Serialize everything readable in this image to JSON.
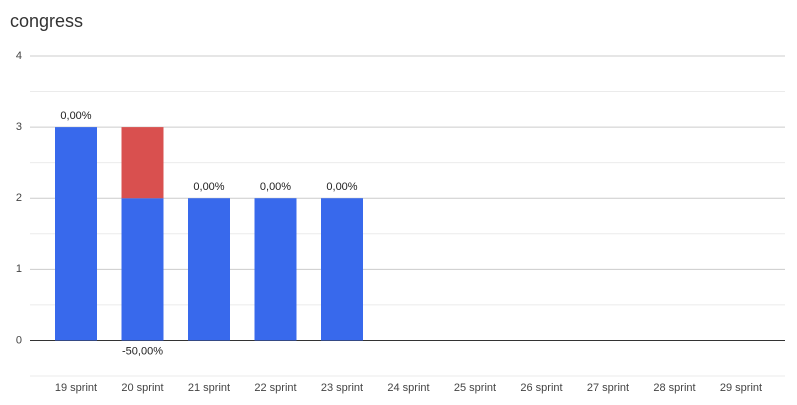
{
  "chart_data": {
    "type": "stacked-bar",
    "title": "congress",
    "categories": [
      "19 sprint",
      "20 sprint",
      "21 sprint",
      "22 sprint",
      "23 sprint",
      "24 sprint",
      "25 sprint",
      "26 sprint",
      "27 sprint",
      "28 sprint",
      "29 sprint"
    ],
    "series": [
      {
        "color": "#3869ec",
        "values": [
          3,
          2,
          2,
          2,
          2,
          null,
          null,
          null,
          null,
          null,
          null
        ]
      },
      {
        "color": "#d9504f",
        "values": [
          null,
          1,
          null,
          null,
          null,
          null,
          null,
          null,
          null,
          null,
          null
        ]
      }
    ],
    "annotations": [
      "0,00%",
      "-50,00%",
      "0,00%",
      "0,00%",
      "0,00%",
      null,
      null,
      null,
      null,
      null,
      null
    ],
    "ylim": [
      -0.5,
      4
    ],
    "yticks": [
      0,
      1,
      2,
      3,
      4
    ],
    "minor_yticks": [
      -0.5,
      0.5,
      1.5,
      2.5,
      3.5
    ],
    "grid": true
  }
}
